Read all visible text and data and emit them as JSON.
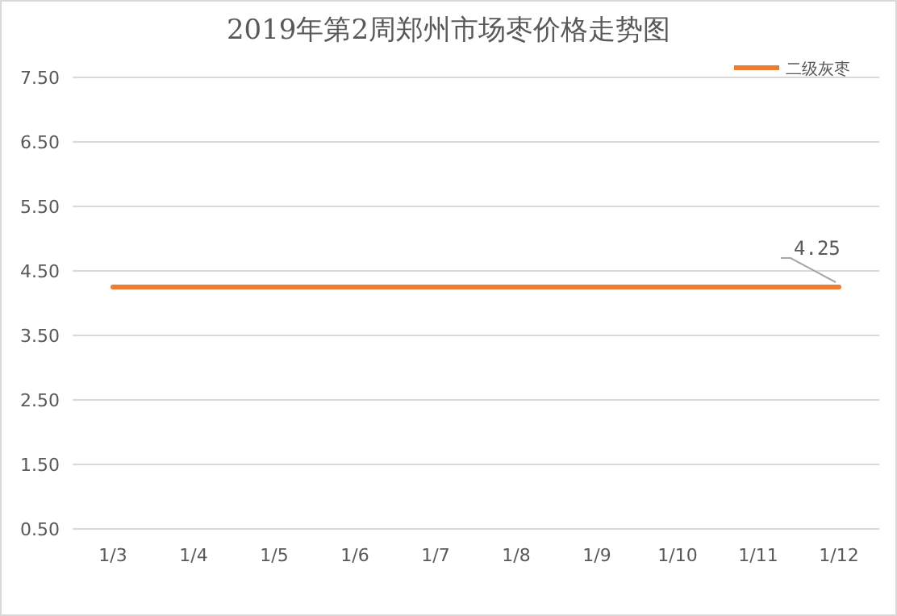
{
  "chart_data": {
    "type": "line",
    "title": "2019年第2周郑州市场枣价格走势图",
    "categories": [
      "1/3",
      "1/4",
      "1/5",
      "1/6",
      "1/7",
      "1/8",
      "1/9",
      "1/10",
      "1/11",
      "1/12"
    ],
    "series": [
      {
        "name": "二级灰枣",
        "color": "#ed7d31",
        "values": [
          4.25,
          4.25,
          4.25,
          4.25,
          4.25,
          4.25,
          4.25,
          4.25,
          4.25,
          4.25
        ]
      }
    ],
    "ylim": [
      0.5,
      7.5
    ],
    "yticks": [
      {
        "value": 0.5,
        "label": "0.50"
      },
      {
        "value": 1.5,
        "label": "1.50"
      },
      {
        "value": 2.5,
        "label": "2.50"
      },
      {
        "value": 3.5,
        "label": "3.50"
      },
      {
        "value": 4.5,
        "label": "4.50"
      },
      {
        "value": 5.5,
        "label": "5.50"
      },
      {
        "value": 6.5,
        "label": "6.50"
      },
      {
        "value": 7.5,
        "label": "7.50"
      }
    ],
    "grid": "y",
    "legend": "top right",
    "marker": "none",
    "line_style": "solid",
    "annotations": [
      {
        "text": "4.25",
        "x": "1/12",
        "y": 4.25
      }
    ]
  }
}
